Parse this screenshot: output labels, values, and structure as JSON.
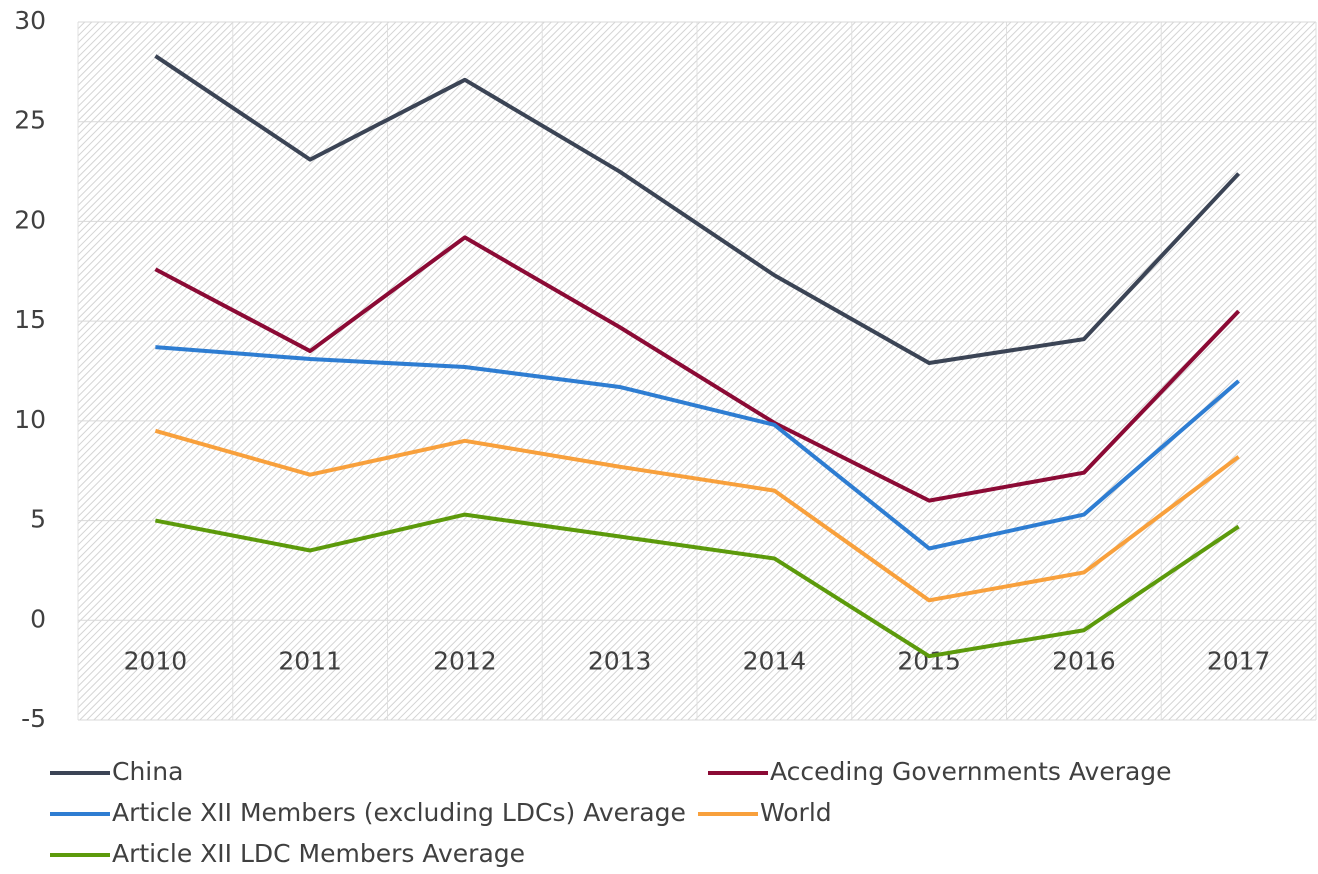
{
  "chart_data": {
    "type": "line",
    "categories": [
      "2010",
      "2011",
      "2012",
      "2013",
      "2014",
      "2015",
      "2016",
      "2017"
    ],
    "series": [
      {
        "name": "China",
        "color": "#3b4455",
        "values": [
          28.3,
          23.1,
          27.1,
          22.5,
          17.3,
          12.9,
          14.1,
          22.4
        ]
      },
      {
        "name": "Acceding Governments Average",
        "color": "#8b0a35",
        "values": [
          17.6,
          13.5,
          19.2,
          14.7,
          9.9,
          6.0,
          7.4,
          15.5
        ]
      },
      {
        "name": "Article XII Members (excluding LDCs) Average",
        "color": "#2e7dd2",
        "values": [
          13.7,
          13.1,
          12.7,
          11.7,
          9.8,
          3.6,
          5.3,
          12.0
        ]
      },
      {
        "name": "World",
        "color": "#f8a03c",
        "values": [
          9.5,
          7.3,
          9.0,
          7.7,
          6.5,
          1.0,
          2.4,
          8.2
        ]
      },
      {
        "name": "Article XII LDC Members Average",
        "color": "#5c9a0b",
        "values": [
          5.0,
          3.5,
          5.3,
          4.2,
          3.1,
          -1.8,
          -0.5,
          4.7
        ]
      }
    ],
    "ylim": [
      -5,
      30
    ],
    "yticks": [
      -5,
      0,
      5,
      10,
      15,
      20,
      25,
      30
    ],
    "grid": true
  }
}
